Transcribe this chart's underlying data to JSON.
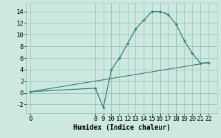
{
  "xlabel": "Humidex (Indice chaleur)",
  "background_color": "#cce8e0",
  "line_color": "#2e7d6e",
  "grid_color": "#a0c8be",
  "line1_x": [
    0,
    8,
    9,
    10,
    11,
    12,
    13,
    14,
    15,
    16,
    17,
    18,
    19,
    20,
    21,
    22
  ],
  "line1_y": [
    0.2,
    0.8,
    -2.5,
    4.0,
    6.0,
    8.5,
    11.0,
    12.5,
    14.0,
    14.0,
    13.5,
    11.8,
    9.0,
    6.8,
    5.1,
    5.2
  ],
  "line2_x": [
    0,
    22
  ],
  "line2_y": [
    0.2,
    5.2
  ],
  "xlim": [
    -0.5,
    23.0
  ],
  "ylim": [
    -3.5,
    15.5
  ],
  "yticks": [
    -2,
    0,
    2,
    4,
    6,
    8,
    10,
    12,
    14
  ],
  "xticks": [
    0,
    8,
    9,
    10,
    11,
    12,
    13,
    14,
    15,
    16,
    17,
    18,
    19,
    20,
    21,
    22
  ],
  "xlabel_fontsize": 7,
  "tick_fontsize": 6.5
}
